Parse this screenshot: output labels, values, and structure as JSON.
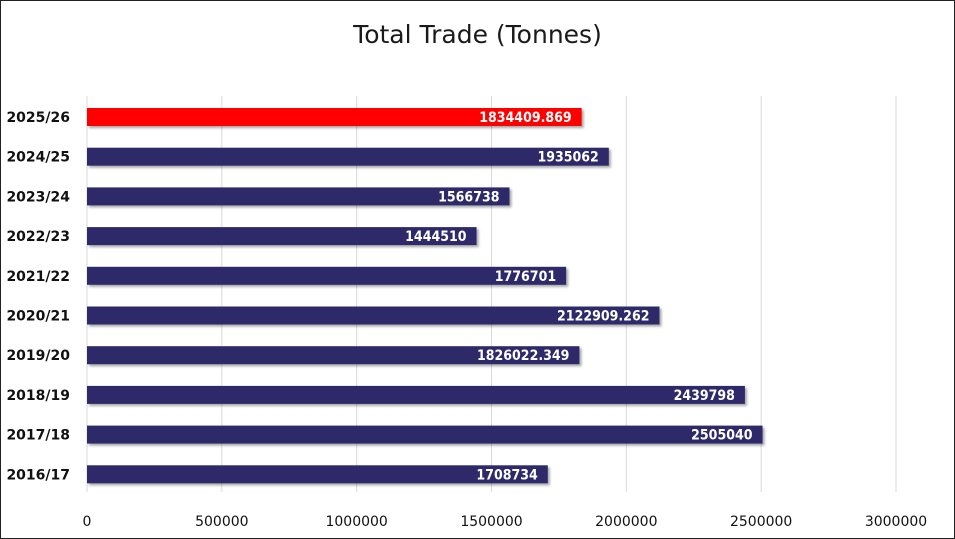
{
  "chart_data": {
    "type": "bar",
    "orientation": "horizontal",
    "title": "Total Trade (Tonnes)",
    "categories": [
      "2025/26",
      "2024/25",
      "2023/24",
      "2022/23",
      "2021/22",
      "2020/21",
      "2019/20",
      "2018/19",
      "2017/18",
      "2016/17"
    ],
    "values": [
      1834409.869,
      1935062,
      1566738,
      1444510,
      1776701,
      2122909.262,
      1826022.349,
      2439798,
      2505040,
      1708734
    ],
    "value_labels": [
      "1834409.869",
      "1935062",
      "1566738",
      "1444510",
      "1776701",
      "2122909.262",
      "1826022.349",
      "2439798",
      "2505040",
      "1708734"
    ],
    "xlim": [
      0,
      3000000
    ],
    "xticks": [
      "0",
      "500000",
      "1000000",
      "1500000",
      "2000000",
      "2500000",
      "3000000"
    ],
    "xtick_values": [
      0,
      500000,
      1000000,
      1500000,
      2000000,
      2500000,
      3000000
    ],
    "grid": true,
    "colors": {
      "highlight": "#ff0000",
      "default": "#2e2a6b",
      "grid": "#d9d9d9"
    },
    "highlight_index": 0
  }
}
